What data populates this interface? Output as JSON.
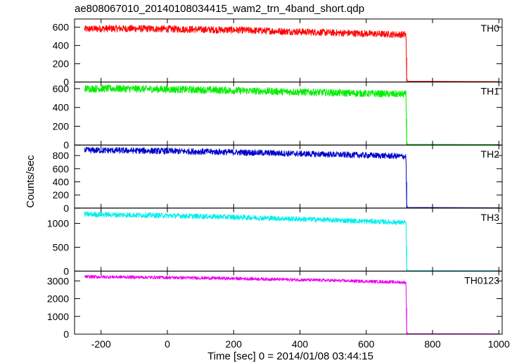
{
  "chart_data": {
    "type": "line",
    "title": "ae808067010_20140108034415_wam2_trn_4band_short.qdp",
    "xlabel": "Time [sec] 0 = 2014/01/08 03:44:15",
    "ylabel": "Counts/sec",
    "xlim": [
      -280,
      1010
    ],
    "x_ticks": [
      "-200",
      "0",
      "200",
      "400",
      "600",
      "800",
      "1000"
    ],
    "x_tick_values": [
      -200,
      0,
      200,
      400,
      600,
      800,
      1000
    ],
    "drop_time": 722,
    "panels": [
      {
        "name": "TH0",
        "color": "#ff0000",
        "ylim": [
          0,
          690
        ],
        "y_ticks": [
          "0",
          "200",
          "400",
          "600"
        ],
        "y_tick_values": [
          0,
          200,
          400,
          600
        ],
        "data": {
          "x": [
            -250,
            -200,
            -150,
            -100,
            -50,
            0,
            50,
            100,
            150,
            200,
            250,
            300,
            350,
            400,
            450,
            500,
            550,
            600,
            650,
            700,
            720,
            722,
            1000
          ],
          "y": [
            580,
            585,
            585,
            585,
            583,
            580,
            578,
            575,
            572,
            570,
            565,
            560,
            555,
            550,
            545,
            540,
            535,
            530,
            525,
            520,
            520,
            8,
            5
          ]
        }
      },
      {
        "name": "TH1",
        "color": "#00ee00",
        "ylim": [
          0,
          670
        ],
        "y_ticks": [
          "0",
          "200",
          "400",
          "600"
        ],
        "y_tick_values": [
          0,
          200,
          400,
          600
        ],
        "data": {
          "x": [
            -250,
            -200,
            -150,
            -100,
            -50,
            0,
            50,
            100,
            150,
            200,
            250,
            300,
            350,
            400,
            450,
            500,
            550,
            600,
            650,
            700,
            720,
            722,
            1000
          ],
          "y": [
            600,
            600,
            600,
            598,
            595,
            592,
            590,
            587,
            584,
            580,
            576,
            572,
            568,
            564,
            560,
            556,
            552,
            548,
            545,
            540,
            540,
            8,
            5
          ]
        }
      },
      {
        "name": "TH2",
        "color": "#0000cc",
        "ylim": [
          0,
          960
        ],
        "y_ticks": [
          "0",
          "200",
          "400",
          "600",
          "800"
        ],
        "y_tick_values": [
          0,
          200,
          400,
          600,
          800
        ],
        "data": {
          "x": [
            -250,
            -200,
            -150,
            -100,
            -50,
            0,
            50,
            100,
            150,
            200,
            250,
            300,
            350,
            400,
            450,
            500,
            550,
            600,
            650,
            700,
            720,
            722,
            1000
          ],
          "y": [
            880,
            880,
            878,
            875,
            872,
            868,
            864,
            860,
            856,
            850,
            845,
            840,
            834,
            828,
            822,
            816,
            810,
            804,
            798,
            790,
            785,
            10,
            5
          ]
        }
      },
      {
        "name": "TH3",
        "color": "#00eeee",
        "ylim": [
          0,
          1320
        ],
        "y_ticks": [
          "0",
          "500",
          "1000"
        ],
        "y_tick_values": [
          0,
          500,
          1000
        ],
        "data": {
          "x": [
            -250,
            -200,
            -150,
            -100,
            -50,
            0,
            50,
            100,
            150,
            200,
            250,
            300,
            350,
            400,
            450,
            500,
            550,
            600,
            650,
            700,
            720,
            722,
            1000
          ],
          "y": [
            1190,
            1185,
            1180,
            1175,
            1170,
            1163,
            1155,
            1147,
            1140,
            1132,
            1122,
            1112,
            1100,
            1090,
            1080,
            1068,
            1056,
            1045,
            1033,
            1020,
            1015,
            12,
            8
          ]
        }
      },
      {
        "name": "TH0123",
        "color": "#ee00ee",
        "ylim": [
          0,
          3550
        ],
        "y_ticks": [
          "0",
          "1000",
          "2000",
          "3000"
        ],
        "y_tick_values": [
          0,
          1000,
          2000,
          3000
        ],
        "data": {
          "x": [
            -250,
            -200,
            -150,
            -100,
            -50,
            0,
            50,
            100,
            150,
            200,
            250,
            300,
            350,
            400,
            450,
            500,
            550,
            600,
            650,
            700,
            720,
            722,
            1000
          ],
          "y": [
            3230,
            3225,
            3220,
            3210,
            3200,
            3190,
            3178,
            3165,
            3150,
            3135,
            3118,
            3100,
            3082,
            3062,
            3042,
            3020,
            2998,
            2975,
            2950,
            2925,
            2910,
            30,
            20
          ]
        }
      }
    ]
  }
}
